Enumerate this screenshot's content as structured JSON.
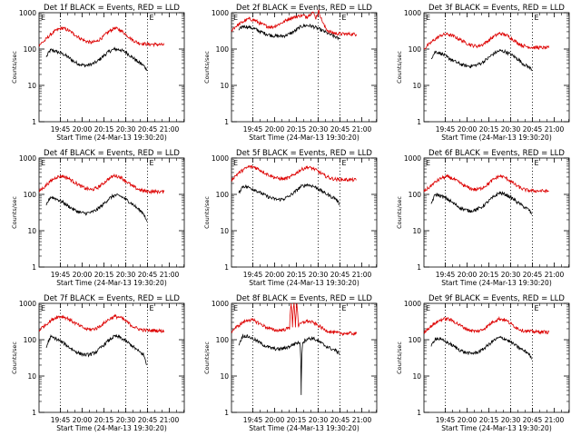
{
  "figure": {
    "shared": {
      "xlabel": "Start Time (24-Mar-13 19:30:20)",
      "ylabel": "Counts/sec",
      "x_ticks": [
        "19:45",
        "20:00",
        "20:15",
        "20:30",
        "20:45",
        "21:00"
      ],
      "y_ticks": [
        "1",
        "10",
        "100",
        "1000"
      ],
      "marker_label": "E",
      "series_colors": {
        "events": "#000000",
        "lld": "#dd0000"
      }
    }
  },
  "chart_data": [
    {
      "type": "line",
      "title": "Det 1f BLACK = Events, RED = LLD",
      "x_unit": "minutes after 19:30:20",
      "xlim": [
        0,
        100
      ],
      "ylim": [
        1,
        1000
      ],
      "yscale": "log",
      "markers": [
        14.7,
        59.7,
        74.7
      ],
      "series": [
        {
          "name": "Events",
          "color": "#000000",
          "x": [
            5,
            8,
            12,
            16,
            20,
            24,
            28,
            32,
            36,
            40,
            44,
            48,
            52,
            56,
            60,
            64,
            68,
            72,
            74
          ],
          "y": [
            60,
            95,
            85,
            75,
            60,
            45,
            38,
            35,
            38,
            45,
            62,
            85,
            100,
            95,
            80,
            60,
            45,
            35,
            28
          ]
        },
        {
          "name": "LLD",
          "color": "#dd0000",
          "x": [
            0,
            4,
            8,
            12,
            16,
            20,
            24,
            28,
            32,
            36,
            40,
            44,
            48,
            52,
            56,
            60,
            64,
            68,
            72,
            76,
            80,
            86
          ],
          "y": [
            130,
            170,
            250,
            330,
            380,
            330,
            260,
            200,
            165,
            150,
            165,
            215,
            300,
            380,
            330,
            250,
            180,
            150,
            140,
            135,
            135,
            130
          ]
        }
      ]
    },
    {
      "type": "line",
      "title": "Det 2f BLACK = Events, RED = LLD",
      "x_unit": "minutes after 19:30:20",
      "xlim": [
        0,
        100
      ],
      "ylim": [
        1,
        1000
      ],
      "yscale": "log",
      "markers": [
        14.7,
        59.7,
        74.7
      ],
      "series": [
        {
          "name": "Events",
          "color": "#000000",
          "x": [
            5,
            8,
            12,
            16,
            20,
            24,
            28,
            32,
            36,
            40,
            44,
            48,
            52,
            56,
            60,
            64,
            68,
            72,
            74
          ],
          "y": [
            330,
            430,
            400,
            360,
            300,
            260,
            235,
            225,
            230,
            260,
            320,
            420,
            450,
            420,
            360,
            300,
            250,
            210,
            190
          ]
        },
        {
          "name": "LLD",
          "color": "#dd0000",
          "x": [
            0,
            4,
            8,
            12,
            16,
            20,
            24,
            28,
            32,
            36,
            40,
            44,
            48,
            52,
            56,
            58,
            60,
            62,
            64,
            66,
            68,
            72,
            76,
            80,
            86
          ],
          "y": [
            330,
            450,
            560,
            680,
            620,
            500,
            430,
            400,
            470,
            560,
            700,
            760,
            850,
            780,
            1050,
            700,
            1100,
            650,
            420,
            330,
            290,
            270,
            260,
            260,
            255
          ]
        }
      ]
    },
    {
      "type": "line",
      "title": "Det 3f BLACK = Events, RED = LLD",
      "x_unit": "minutes after 19:30:20",
      "xlim": [
        0,
        100
      ],
      "ylim": [
        1,
        1000
      ],
      "yscale": "log",
      "markers": [
        14.7,
        59.7,
        74.7
      ],
      "series": [
        {
          "name": "Events",
          "color": "#000000",
          "x": [
            5,
            8,
            12,
            16,
            20,
            24,
            28,
            32,
            36,
            40,
            44,
            48,
            52,
            56,
            60,
            64,
            68,
            72,
            74
          ],
          "y": [
            55,
            85,
            75,
            60,
            48,
            40,
            35,
            34,
            36,
            42,
            55,
            75,
            90,
            85,
            70,
            55,
            40,
            32,
            28
          ]
        },
        {
          "name": "LLD",
          "color": "#dd0000",
          "x": [
            0,
            4,
            8,
            12,
            16,
            20,
            24,
            28,
            32,
            36,
            40,
            44,
            48,
            52,
            56,
            60,
            64,
            68,
            72,
            76,
            80,
            86
          ],
          "y": [
            100,
            140,
            190,
            240,
            260,
            230,
            190,
            155,
            130,
            120,
            130,
            165,
            220,
            270,
            250,
            200,
            150,
            125,
            115,
            110,
            110,
            108
          ]
        }
      ]
    },
    {
      "type": "line",
      "title": "Det 4f BLACK = Events, RED = LLD",
      "x_unit": "minutes after 19:30:20",
      "xlim": [
        0,
        100
      ],
      "ylim": [
        1,
        1000
      ],
      "yscale": "log",
      "markers": [
        14.7,
        59.7,
        74.7
      ],
      "series": [
        {
          "name": "Events",
          "color": "#000000",
          "x": [
            5,
            8,
            12,
            16,
            20,
            24,
            28,
            32,
            36,
            40,
            44,
            48,
            52,
            56,
            60,
            64,
            68,
            72,
            74
          ],
          "y": [
            50,
            85,
            75,
            62,
            48,
            38,
            32,
            30,
            32,
            38,
            52,
            75,
            95,
            90,
            72,
            55,
            40,
            30,
            18
          ]
        },
        {
          "name": "LLD",
          "color": "#dd0000",
          "x": [
            0,
            4,
            8,
            12,
            16,
            20,
            24,
            28,
            32,
            36,
            40,
            44,
            48,
            52,
            56,
            60,
            64,
            68,
            72,
            76,
            80,
            86
          ],
          "y": [
            120,
            165,
            230,
            300,
            320,
            280,
            220,
            175,
            145,
            135,
            150,
            195,
            270,
            330,
            300,
            230,
            170,
            140,
            125,
            120,
            120,
            118
          ]
        }
      ]
    },
    {
      "type": "line",
      "title": "Det 5f BLACK = Events, RED = LLD",
      "x_unit": "minutes after 19:30:20",
      "xlim": [
        0,
        100
      ],
      "ylim": [
        1,
        1000
      ],
      "yscale": "log",
      "markers": [
        14.7,
        59.7,
        74.7
      ],
      "series": [
        {
          "name": "Events",
          "color": "#000000",
          "x": [
            5,
            8,
            12,
            16,
            20,
            24,
            28,
            32,
            36,
            40,
            44,
            48,
            52,
            56,
            60,
            64,
            68,
            72,
            74
          ],
          "y": [
            110,
            170,
            155,
            135,
            110,
            90,
            78,
            72,
            75,
            90,
            120,
            165,
            185,
            170,
            140,
            110,
            90,
            75,
            55
          ]
        },
        {
          "name": "LLD",
          "color": "#dd0000",
          "x": [
            0,
            4,
            8,
            12,
            16,
            20,
            24,
            28,
            32,
            36,
            40,
            44,
            48,
            52,
            56,
            60,
            64,
            68,
            72,
            76,
            80,
            86
          ],
          "y": [
            250,
            360,
            470,
            580,
            560,
            460,
            370,
            310,
            275,
            265,
            290,
            370,
            480,
            560,
            520,
            420,
            330,
            280,
            260,
            255,
            255,
            250
          ]
        }
      ]
    },
    {
      "type": "line",
      "title": "Det 6f BLACK = Events, RED = LLD",
      "x_unit": "minutes after 19:30:20",
      "xlim": [
        0,
        100
      ],
      "ylim": [
        1,
        1000
      ],
      "yscale": "log",
      "markers": [
        14.7,
        59.7,
        74.7
      ],
      "series": [
        {
          "name": "Events",
          "color": "#000000",
          "x": [
            5,
            8,
            12,
            16,
            20,
            24,
            28,
            32,
            36,
            40,
            44,
            48,
            52,
            56,
            60,
            64,
            68,
            72,
            74
          ],
          "y": [
            55,
            100,
            90,
            75,
            58,
            45,
            38,
            35,
            38,
            45,
            62,
            85,
            110,
            100,
            82,
            62,
            48,
            38,
            30
          ]
        },
        {
          "name": "LLD",
          "color": "#dd0000",
          "x": [
            0,
            4,
            8,
            12,
            16,
            20,
            24,
            28,
            32,
            36,
            40,
            44,
            48,
            52,
            56,
            60,
            64,
            68,
            72,
            76,
            80,
            86
          ],
          "y": [
            120,
            160,
            220,
            280,
            310,
            270,
            215,
            170,
            145,
            135,
            150,
            190,
            260,
            320,
            290,
            225,
            170,
            140,
            128,
            125,
            125,
            122
          ]
        }
      ]
    },
    {
      "type": "line",
      "title": "Det 7f BLACK = Events, RED = LLD",
      "x_unit": "minutes after 19:30:20",
      "xlim": [
        0,
        100
      ],
      "ylim": [
        1,
        1000
      ],
      "yscale": "log",
      "markers": [
        14.7,
        59.7,
        74.7
      ],
      "series": [
        {
          "name": "Events",
          "color": "#000000",
          "x": [
            5,
            8,
            12,
            16,
            20,
            24,
            28,
            32,
            36,
            40,
            44,
            48,
            52,
            56,
            60,
            64,
            68,
            72,
            74
          ],
          "y": [
            60,
            120,
            105,
            85,
            65,
            50,
            42,
            38,
            40,
            48,
            68,
            95,
            125,
            115,
            90,
            68,
            50,
            38,
            20
          ]
        },
        {
          "name": "LLD",
          "color": "#dd0000",
          "x": [
            0,
            4,
            8,
            12,
            16,
            20,
            24,
            28,
            32,
            36,
            40,
            44,
            48,
            52,
            56,
            60,
            64,
            68,
            72,
            76,
            80,
            86
          ],
          "y": [
            180,
            250,
            330,
            420,
            440,
            380,
            300,
            240,
            200,
            190,
            210,
            270,
            360,
            440,
            410,
            320,
            240,
            200,
            185,
            180,
            180,
            175
          ]
        }
      ]
    },
    {
      "type": "line",
      "title": "Det 8f BLACK = Events, RED = LLD",
      "x_unit": "minutes after 19:30:20",
      "xlim": [
        0,
        100
      ],
      "ylim": [
        1,
        1000
      ],
      "yscale": "log",
      "markers": [
        14.7,
        59.7,
        74.7
      ],
      "series": [
        {
          "name": "Events",
          "color": "#000000",
          "x": [
            5,
            8,
            12,
            16,
            20,
            24,
            28,
            32,
            36,
            40,
            44,
            47,
            48,
            49,
            52,
            56,
            60,
            64,
            68,
            72,
            74
          ],
          "y": [
            70,
            130,
            120,
            100,
            80,
            65,
            58,
            55,
            58,
            65,
            80,
            85,
            3,
            85,
            105,
            110,
            90,
            70,
            58,
            50,
            42
          ]
        },
        {
          "name": "LLD",
          "color": "#dd0000",
          "x": [
            0,
            4,
            8,
            12,
            16,
            20,
            24,
            28,
            32,
            36,
            40,
            41,
            42,
            43,
            44,
            45,
            46,
            48,
            52,
            56,
            60,
            64,
            68,
            72,
            76,
            80,
            86
          ],
          "y": [
            170,
            230,
            300,
            360,
            330,
            270,
            220,
            190,
            180,
            190,
            210,
            1000,
            220,
            1000,
            220,
            1000,
            240,
            280,
            330,
            300,
            240,
            190,
            165,
            155,
            150,
            150,
            148
          ]
        }
      ]
    },
    {
      "type": "line",
      "title": "Det 9f BLACK = Events, RED = LLD",
      "x_unit": "minutes after 19:30:20",
      "xlim": [
        0,
        100
      ],
      "ylim": [
        1,
        1000
      ],
      "yscale": "log",
      "markers": [
        14.7,
        59.7,
        74.7
      ],
      "series": [
        {
          "name": "Events",
          "color": "#000000",
          "x": [
            5,
            8,
            12,
            16,
            20,
            24,
            28,
            32,
            36,
            40,
            44,
            48,
            52,
            56,
            60,
            64,
            68,
            72,
            74
          ],
          "y": [
            65,
            110,
            100,
            85,
            68,
            54,
            45,
            42,
            44,
            52,
            70,
            95,
            115,
            105,
            85,
            65,
            52,
            42,
            30
          ]
        },
        {
          "name": "LLD",
          "color": "#dd0000",
          "x": [
            0,
            4,
            8,
            12,
            16,
            20,
            24,
            28,
            32,
            36,
            40,
            44,
            48,
            52,
            56,
            60,
            64,
            68,
            72,
            76,
            80,
            86
          ],
          "y": [
            160,
            220,
            290,
            360,
            380,
            330,
            260,
            210,
            180,
            170,
            185,
            240,
            320,
            380,
            350,
            270,
            210,
            180,
            170,
            165,
            165,
            162
          ]
        }
      ]
    }
  ]
}
